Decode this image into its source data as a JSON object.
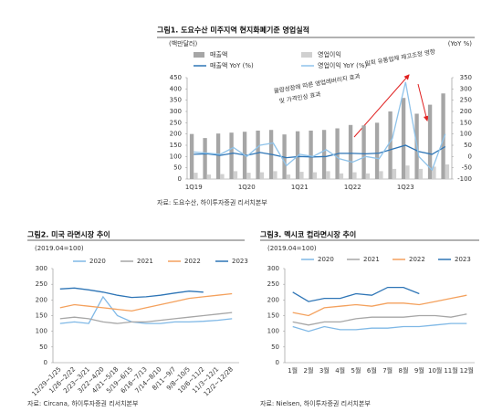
{
  "chart_data": [
    {
      "type": "combo",
      "title": "그림1. 도요수산 미주지역 현지화폐기준 영업실적",
      "y_label": "(백만달러)",
      "y2_label": "(YoY %)",
      "categories": [
        "1Q19",
        null,
        null,
        null,
        "1Q20",
        null,
        null,
        null,
        "1Q21",
        null,
        null,
        null,
        "1Q22",
        null,
        null,
        null,
        "1Q23",
        null,
        null,
        null
      ],
      "series": [
        {
          "name": "매출액",
          "type": "bar",
          "color": "#a6a6a6",
          "values": [
            200,
            182,
            202,
            206,
            210,
            215,
            218,
            198,
            212,
            215,
            218,
            225,
            240,
            238,
            250,
            300,
            360,
            290,
            330,
            380
          ]
        },
        {
          "name": "영업이익",
          "type": "bar",
          "color": "#d0d0d0",
          "values": [
            28,
            20,
            22,
            35,
            28,
            30,
            35,
            20,
            32,
            30,
            35,
            25,
            30,
            25,
            35,
            45,
            60,
            45,
            55,
            65
          ]
        },
        {
          "name": "매출액 YoY (%)",
          "type": "line",
          "axis": "y2",
          "color": "#2e75b6",
          "values": [
            10,
            12,
            5,
            15,
            5,
            18,
            8,
            -5,
            0,
            -2,
            0,
            14,
            14,
            12,
            15,
            33,
            50,
            22,
            10,
            44
          ]
        },
        {
          "name": "영업이익 YoY (%)",
          "type": "line",
          "axis": "y2",
          "color": "#8fc3ea",
          "values": [
            20,
            15,
            10,
            40,
            0,
            50,
            60,
            -40,
            10,
            0,
            30,
            -10,
            -25,
            0,
            -10,
            80,
            330,
            0,
            -60,
            100
          ]
        }
      ],
      "ylim": [
        0,
        450
      ],
      "yticks": [
        0,
        50,
        100,
        150,
        200,
        250,
        300,
        350,
        400,
        450
      ],
      "y2lim": [
        -100,
        350
      ],
      "y2ticks": [
        -100,
        -50,
        0,
        50,
        100,
        150,
        200,
        250,
        300,
        350
      ],
      "annotations": [
        "물량성장에 따른 영업레버리지 효과",
        "및 가격인상 효과",
        "일회 유통업체 재고조정 영향"
      ],
      "annotation_color": "#e02020",
      "source": "자료: 도요수산, 하이투자증권 리서치본부"
    },
    {
      "type": "line",
      "title": "그림2. 미국 라면시장 추이",
      "subtitle": "(2019.04=100)",
      "categories": [
        "12/29~1/25",
        "1/26~2/22",
        "2/23~3/21",
        "3/22~4/20",
        "4/21~5/18",
        "5/19~6/15",
        "6/16~7/13",
        "7/14~8/10",
        "8/11~9/7",
        "9/8~10/5",
        "10/6~11/2",
        "11/3~12/1",
        "12/2~12/28"
      ],
      "series": [
        {
          "name": "2020",
          "color": "#7fb8e6",
          "values": [
            125,
            130,
            125,
            210,
            150,
            130,
            125,
            125,
            130,
            130,
            132,
            135,
            140
          ]
        },
        {
          "name": "2021",
          "color": "#a6a6a6",
          "values": [
            140,
            145,
            140,
            130,
            125,
            130,
            130,
            135,
            140,
            145,
            150,
            155,
            160
          ]
        },
        {
          "name": "2022",
          "color": "#f4a15d",
          "values": [
            175,
            185,
            180,
            175,
            170,
            165,
            175,
            185,
            195,
            205,
            210,
            215,
            220
          ]
        },
        {
          "name": "2023",
          "color": "#2e75b6",
          "values": [
            235,
            238,
            232,
            225,
            215,
            208,
            210,
            215,
            222,
            228,
            225,
            null,
            null
          ]
        }
      ],
      "ylim": [
        0,
        300
      ],
      "yticks": [
        0,
        50,
        100,
        150,
        200,
        250,
        300
      ],
      "source": "자료: Circana, 하이투자증권 리서치본부"
    },
    {
      "type": "line",
      "title": "그림3. 멕시코 컵라면시장 추이",
      "subtitle": "(2019.04=100)",
      "categories": [
        "1월",
        "2월",
        "3월",
        "4월",
        "5월",
        "6월",
        "7월",
        "8월",
        "9월",
        "10월",
        "11월",
        "12월"
      ],
      "series": [
        {
          "name": "2020",
          "color": "#7fb8e6",
          "values": [
            115,
            100,
            115,
            105,
            105,
            110,
            110,
            115,
            115,
            120,
            125,
            125
          ]
        },
        {
          "name": "2021",
          "color": "#a6a6a6",
          "values": [
            130,
            120,
            130,
            130,
            140,
            145,
            145,
            145,
            150,
            150,
            145,
            155
          ]
        },
        {
          "name": "2022",
          "color": "#f4a15d",
          "values": [
            160,
            150,
            175,
            180,
            185,
            180,
            190,
            190,
            185,
            195,
            205,
            215
          ]
        },
        {
          "name": "2023",
          "color": "#2e75b6",
          "values": [
            225,
            195,
            205,
            205,
            220,
            215,
            240,
            240,
            220,
            null,
            null,
            null
          ]
        }
      ],
      "ylim": [
        0,
        300
      ],
      "yticks": [
        0,
        50,
        100,
        150,
        200,
        250,
        300
      ],
      "source": "자료: Nielsen, 하이투자증권 리서치본부"
    }
  ]
}
